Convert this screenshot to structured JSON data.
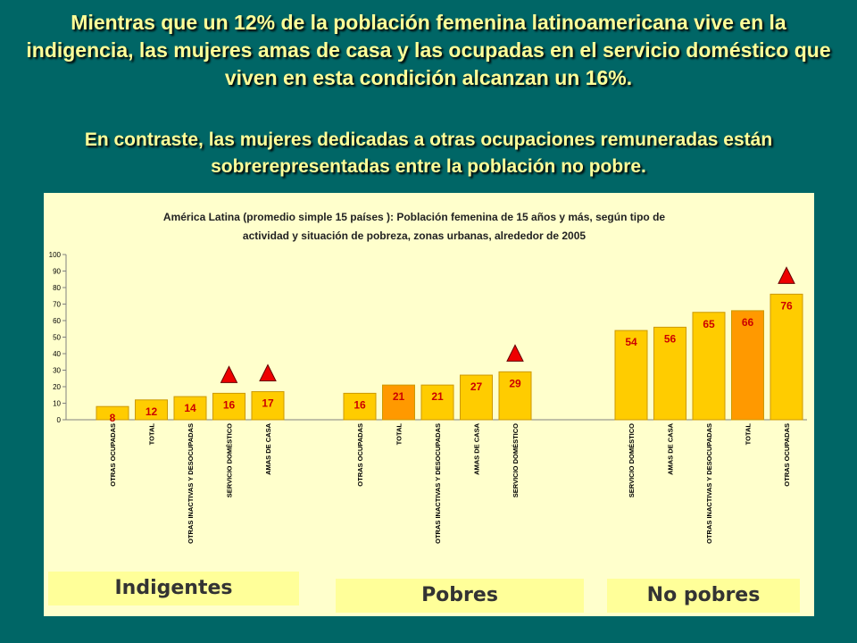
{
  "headline": "Mientras que un 12% de la población femenina latinoamericana vive en la indigencia, las mujeres amas de casa y las ocupadas en el servicio doméstico que viven en esta condición alcanzan un 16%.",
  "subheadline": "En contraste, las mujeres dedicadas a otras ocupaciones remuneradas están sobrerepresentadas entre la población no pobre.",
  "colors": {
    "background": "#006666",
    "headline_text": "#ffff99",
    "panel": "#ffffcc",
    "bar": "#ffcc00",
    "bar_total": "#ff9900",
    "bar_label": "#cc0000",
    "marker": "#ee0000",
    "group_label_bg": "#ffff99"
  },
  "group_labels": {
    "indigentes": "Indigentes",
    "pobres": "Pobres",
    "no_pobres": "No pobres"
  },
  "chart_data": {
    "type": "bar",
    "title_lines": [
      "América Latina (promedio simple 15 países ): Población femenina de 15 años y más,  según tipo de",
      "actividad y situación de pobreza, zonas urbanas, alrededor de 2005"
    ],
    "ylim": [
      0,
      100
    ],
    "yticks": [
      0,
      10,
      20,
      30,
      40,
      50,
      60,
      70,
      80,
      90,
      100
    ],
    "grid": false,
    "legend": "none",
    "groups": [
      {
        "name": "Indigentes",
        "bars": [
          {
            "category": "OTRAS OCUPADAS",
            "value": 8,
            "label": "8",
            "highlight": false,
            "is_total": false
          },
          {
            "category": "TOTAL",
            "value": 12,
            "label": "12",
            "highlight": false,
            "is_total": false
          },
          {
            "category": "OTRAS INACTIVAS Y DESOCUPADAS",
            "value": 14,
            "label": "14",
            "highlight": false,
            "is_total": false
          },
          {
            "category": "SERVICIO DOMÉSTICO",
            "value": 16,
            "label": "16",
            "highlight": true,
            "is_total": false
          },
          {
            "category": "AMAS DE CASA",
            "value": 17,
            "label": "17",
            "highlight": true,
            "is_total": false
          }
        ]
      },
      {
        "name": "Pobres",
        "bars": [
          {
            "category": "OTRAS OCUPADAS",
            "value": 16,
            "label": "16",
            "highlight": false,
            "is_total": false
          },
          {
            "category": "TOTAL",
            "value": 21,
            "label": "21",
            "highlight": false,
            "is_total": true
          },
          {
            "category": "OTRAS INACTIVAS Y DESOCUPADAS",
            "value": 21,
            "label": "21",
            "highlight": false,
            "is_total": false
          },
          {
            "category": "AMAS DE CASA",
            "value": 27,
            "label": "27",
            "highlight": false,
            "is_total": false
          },
          {
            "category": "SERVICIO DOMÉSTICO",
            "value": 29,
            "label": "29",
            "highlight": true,
            "is_total": false
          }
        ]
      },
      {
        "name": "No pobres",
        "bars": [
          {
            "category": "SERVICIO DOMÉSTICO",
            "value": 54,
            "label": "54",
            "highlight": false,
            "is_total": false
          },
          {
            "category": "AMAS DE CASA",
            "value": 56,
            "label": "56",
            "highlight": false,
            "is_total": false
          },
          {
            "category": "OTRAS INACTIVAS Y DESOCUPADAS",
            "value": 65,
            "label": "65",
            "highlight": false,
            "is_total": false
          },
          {
            "category": "TOTAL",
            "value": 66,
            "label": "66",
            "highlight": false,
            "is_total": true
          },
          {
            "category": "OTRAS OCUPADAS",
            "value": 76,
            "label": "76",
            "highlight": true,
            "is_total": false
          }
        ]
      }
    ]
  }
}
